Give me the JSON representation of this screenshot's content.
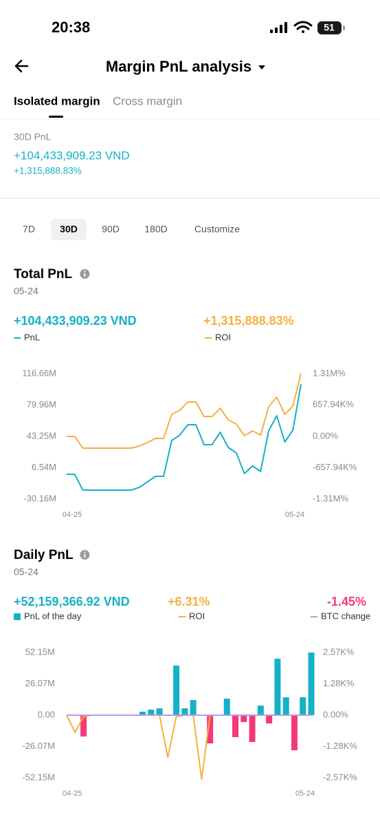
{
  "status_bar": {
    "time": "20:38",
    "battery": "51"
  },
  "header": {
    "title": "Margin PnL analysis"
  },
  "tabs": [
    "Isolated margin",
    "Cross margin"
  ],
  "summary": {
    "label": "30D PnL",
    "pnl": "+104,433,909.23 VND",
    "roi": "+1,315,888.83%"
  },
  "periods": [
    "7D",
    "30D",
    "90D",
    "180D",
    "Customize"
  ],
  "chart_data": [
    {
      "type": "line",
      "title": "Total PnL",
      "subtitle": "05-24",
      "categories": [
        "04-25",
        null,
        null,
        null,
        null,
        null,
        null,
        null,
        null,
        null,
        null,
        null,
        null,
        null,
        null,
        null,
        null,
        null,
        null,
        null,
        null,
        null,
        null,
        null,
        null,
        null,
        null,
        null,
        null,
        "05-24"
      ],
      "series": [
        {
          "name": "PnL",
          "color": "#14b1c9",
          "current_label": "+104,433,909.23 VND",
          "values": [
            -1120000,
            -1120000,
            -19670000,
            -19670000,
            -19670000,
            -19670000,
            -19670000,
            -19670000,
            -19670000,
            -16450000,
            -9990000,
            -3540000,
            -3540000,
            38410000,
            44860000,
            56960000,
            56960000,
            33570000,
            33570000,
            48090000,
            30340000,
            23890000,
            -310000,
            8560000,
            2110000,
            49700000,
            67450000,
            36800000,
            50510000,
            104433909.23
          ]
        },
        {
          "name": "ROI",
          "color": "#f5b041",
          "axis": "y2",
          "current_label": "+1,315,888.83%",
          "values": [
            0,
            0,
            -244600,
            -244600,
            -244600,
            -244600,
            -244600,
            -244600,
            -244600,
            -201500,
            -129500,
            -43000,
            -43000,
            460700,
            547000,
            720000,
            720000,
            417500,
            417500,
            590000,
            345500,
            259000,
            14400,
            115000,
            28800,
            619000,
            820600,
            460700,
            633000,
            1315888.83
          ]
        }
      ],
      "ylim": [
        -30160000,
        116660000
      ],
      "yticks": [
        {
          "value": 116660000,
          "label": "116.66M"
        },
        {
          "value": 79960000,
          "label": "79.96M"
        },
        {
          "value": 43250000,
          "label": "43.25M"
        },
        {
          "value": 6540000,
          "label": "6.54M"
        },
        {
          "value": -30160000,
          "label": "-30.16M"
        }
      ],
      "y2lim": [
        -1310000,
        1310000
      ],
      "y2ticks": [
        {
          "value": 1310000,
          "label": "1.31M%"
        },
        {
          "value": 657940,
          "label": "657.94K%"
        },
        {
          "value": 0,
          "label": "0.00%"
        },
        {
          "value": -657940,
          "label": "-657.94K%"
        },
        {
          "value": -1310000,
          "label": "-1.31M%"
        }
      ],
      "grid": false
    },
    {
      "type": "bar",
      "title": "Daily PnL",
      "subtitle": "05-24",
      "categories": [
        "04-25",
        null,
        null,
        null,
        null,
        null,
        null,
        null,
        null,
        null,
        null,
        null,
        null,
        null,
        null,
        null,
        null,
        null,
        null,
        null,
        null,
        null,
        null,
        null,
        null,
        null,
        null,
        null,
        null,
        "05-24"
      ],
      "series": [
        {
          "name": "PnL of the day",
          "color": "#14b1c9",
          "negative_color": "#f23a7a",
          "current_label": "+52,159,366.92 VND",
          "values": [
            0,
            0,
            -17770000,
            0,
            0,
            0,
            0,
            0,
            0,
            2900000,
            4600000,
            5700000,
            0,
            41300000,
            5700000,
            12600000,
            0,
            -23500000,
            0,
            13750000,
            -18300000,
            -5700000,
            -22350000,
            8000000,
            -6900000,
            47000000,
            14900000,
            -29200000,
            14900000,
            52159366.92
          ]
        },
        {
          "name": "ROI",
          "type": "line",
          "axis": "y2",
          "color": "#f5b041",
          "current_label": "+6.31%",
          "values": [
            0,
            -706,
            -56,
            0,
            0,
            0,
            0,
            0,
            0,
            0,
            0,
            0,
            -1723,
            -56,
            0,
            0,
            -2626,
            0,
            0,
            0,
            0,
            0,
            0,
            0,
            0,
            0,
            0,
            0,
            0,
            6.31
          ]
        },
        {
          "name": "BTC change",
          "type": "line",
          "axis": "y2",
          "color": "#b79be0",
          "current_label": "-1.45%",
          "current_color": "#f23a7a",
          "values": [
            0,
            0,
            0,
            0,
            0,
            0,
            0,
            0,
            0,
            0,
            0,
            0,
            0,
            0,
            0,
            0,
            0,
            0,
            0,
            0,
            0,
            0,
            0,
            0,
            0,
            0,
            0,
            0,
            0,
            -1.45
          ]
        }
      ],
      "ylim": [
        -52150000,
        52150000
      ],
      "yticks": [
        {
          "value": 52150000,
          "label": "52.15M"
        },
        {
          "value": 26070000,
          "label": "26.07M"
        },
        {
          "value": 0,
          "label": "0.00"
        },
        {
          "value": -26070000,
          "label": "-26.07M"
        },
        {
          "value": -52150000,
          "label": "-52.15M"
        }
      ],
      "y2lim": [
        -2570,
        2570
      ],
      "y2ticks": [
        {
          "value": 2570,
          "label": "2.57K%"
        },
        {
          "value": 1280,
          "label": "1.28K%"
        },
        {
          "value": 0,
          "label": "0.00%"
        },
        {
          "value": -1280,
          "label": "-1.28K%"
        },
        {
          "value": -2570,
          "label": "-2.57K%"
        }
      ],
      "grid": false
    }
  ]
}
